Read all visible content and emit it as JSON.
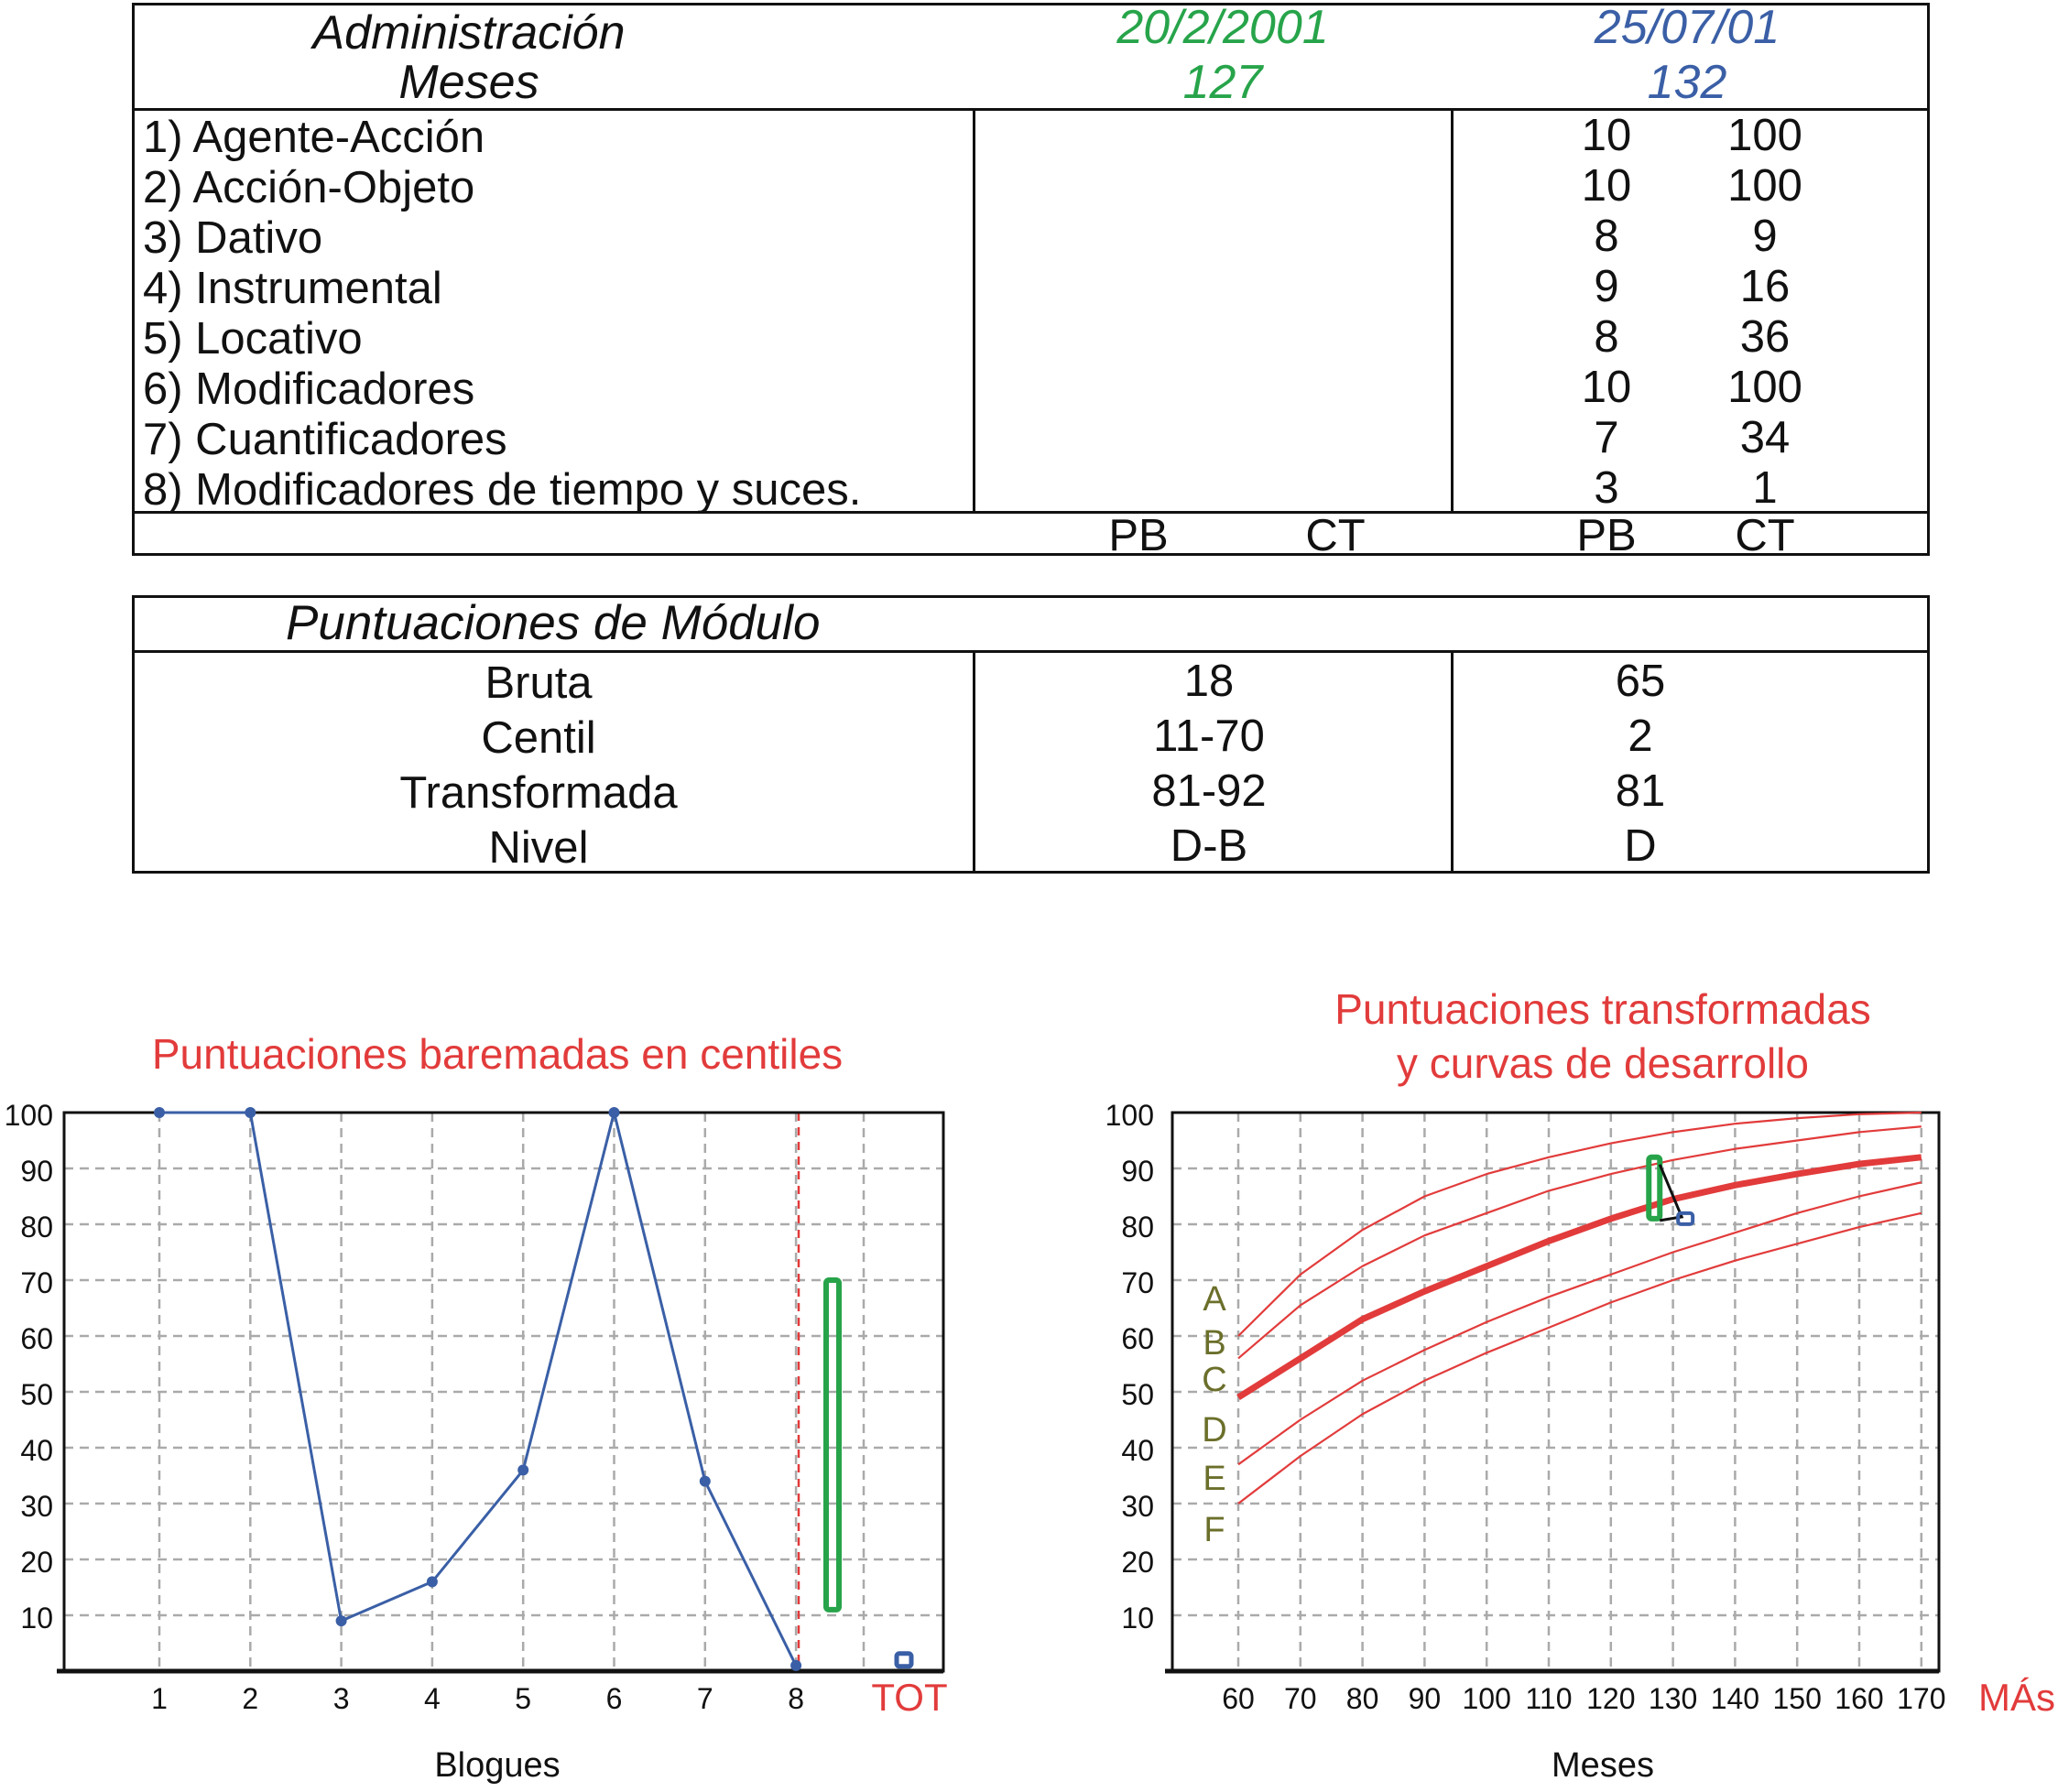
{
  "table1": {
    "header": {
      "admin_label": "Administración",
      "months_label": "Meses",
      "date1": "20/2/2001",
      "months1": "127",
      "date2": "25/07/01",
      "months2": "132"
    },
    "rows": [
      {
        "label": "1) Agente-Acción",
        "pb2": "10",
        "ct2": "100"
      },
      {
        "label": "2) Acción-Objeto",
        "pb2": "10",
        "ct2": "100"
      },
      {
        "label": "3) Dativo",
        "pb2": "8",
        "ct2": "9"
      },
      {
        "label": "4) Instrumental",
        "pb2": "9",
        "ct2": "16"
      },
      {
        "label": "5) Locativo",
        "pb2": "8",
        "ct2": "36"
      },
      {
        "label": "6) Modificadores",
        "pb2": "10",
        "ct2": "100"
      },
      {
        "label": "7) Cuantificadores",
        "pb2": "7",
        "ct2": "34"
      },
      {
        "label": "8) Modificadores de tiempo y suces.",
        "pb2": "3",
        "ct2": "1"
      }
    ],
    "footer": {
      "pb1": "PB",
      "ct1": "CT",
      "pb2": "PB",
      "ct2": "CT"
    }
  },
  "table2": {
    "title": "Puntuaciones de Módulo",
    "rows": [
      {
        "label": "Bruta",
        "v1": "18",
        "v2": "65"
      },
      {
        "label": "Centil",
        "v1": "11-70",
        "v2": "2"
      },
      {
        "label": "Transformada",
        "v1": "81-92",
        "v2": "81"
      },
      {
        "label": "Nivel",
        "v1": "D-B",
        "v2": "D"
      }
    ]
  },
  "colors": {
    "green": "#27a44a",
    "blue": "#3a5fa6",
    "red": "#e23b3b",
    "olive": "#6b6f2a",
    "grid": "#aaaaaa"
  },
  "chart_data": [
    {
      "type": "line",
      "title": "Puntuaciones baremadas en centiles",
      "xlabel": "Blogues",
      "ylabel": "",
      "categories": [
        "1",
        "2",
        "3",
        "4",
        "5",
        "6",
        "7",
        "8"
      ],
      "total_label": "TOT",
      "ylim": [
        0,
        100
      ],
      "yticks": [
        "10",
        "20",
        "30",
        "40",
        "50",
        "60",
        "70",
        "80",
        "90",
        "100"
      ],
      "grid": true,
      "series": [
        {
          "values": [
            100,
            100,
            9,
            16,
            36,
            100,
            34,
            1
          ]
        }
      ],
      "total_range": [
        11,
        70
      ],
      "total_point": 2
    },
    {
      "type": "line",
      "title_lines": [
        "Puntuaciones transformadas",
        "y curvas de desarrollo"
      ],
      "xlabel": "Meses",
      "x_end_label": "MÁs",
      "ylabel": "",
      "x": [
        60,
        70,
        80,
        90,
        100,
        110,
        120,
        130,
        140,
        150,
        160,
        170
      ],
      "xlim": [
        55,
        177
      ],
      "ylim": [
        0,
        100
      ],
      "yticks": [
        "10",
        "20",
        "30",
        "40",
        "50",
        "60",
        "70",
        "80",
        "90",
        "100"
      ],
      "grid": true,
      "level_labels": [
        "A",
        "B",
        "C",
        "D",
        "E",
        "F"
      ],
      "curves": [
        {
          "values": [
            60,
            71,
            79,
            85,
            89,
            92,
            94.5,
            96.5,
            98,
            99,
            99.7,
            100
          ]
        },
        {
          "values": [
            56,
            65.5,
            72.5,
            78,
            82,
            86,
            89,
            91.5,
            93.5,
            95,
            96.5,
            97.5
          ]
        },
        {
          "values": [
            49,
            56,
            63,
            68,
            72.5,
            77,
            81,
            84.5,
            87,
            89,
            90.8,
            92
          ],
          "emphasis": true
        },
        {
          "values": [
            37,
            45,
            52,
            57.5,
            62.5,
            67,
            71,
            75,
            78.5,
            82,
            85,
            87.5
          ]
        },
        {
          "values": [
            30,
            38.5,
            46,
            52,
            57,
            61.5,
            66,
            70,
            73.5,
            76.5,
            79.5,
            82
          ]
        }
      ],
      "observation_range": {
        "x": 127,
        "y": [
          81,
          92
        ]
      },
      "observation_point": {
        "x": 132,
        "y": 81
      }
    }
  ]
}
